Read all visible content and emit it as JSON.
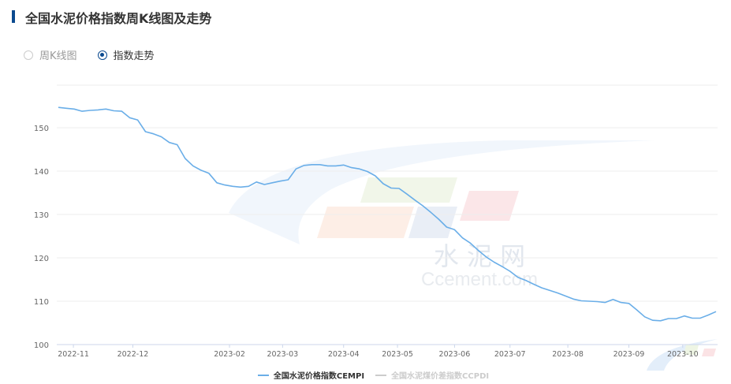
{
  "header": {
    "title": "全国水泥价格指数周K线图及走势"
  },
  "view_options": [
    {
      "label": "周K线图",
      "selected": false
    },
    {
      "label": "指数走势",
      "selected": true
    }
  ],
  "watermark": {
    "cn": "水 泥 网",
    "en": "Ccement.com",
    "corner_cn": "水泥网",
    "corner_en": "Ccement.com"
  },
  "colors": {
    "accent": "#0b4a8f",
    "series1": "#6aaee8",
    "series2_inactive": "#cccccc"
  },
  "chart_data": {
    "type": "line",
    "title": "",
    "xlabel": "",
    "ylabel": "",
    "ylim": [
      100,
      160
    ],
    "y_ticks": [
      100,
      110,
      120,
      130,
      140,
      150
    ],
    "grid": true,
    "legend_position": "bottom",
    "x_ticks": [
      {
        "label": "2022-11",
        "index": 1.9
      },
      {
        "label": "2022-12",
        "index": 9.4
      },
      {
        "label": "2023-02",
        "index": 21.6
      },
      {
        "label": "2023-03",
        "index": 28.3
      },
      {
        "label": "2023-04",
        "index": 36.0
      },
      {
        "label": "2023-05",
        "index": 42.8
      },
      {
        "label": "2023-06",
        "index": 50.0
      },
      {
        "label": "2023-07",
        "index": 57.0
      },
      {
        "label": "2023-08",
        "index": 64.3
      },
      {
        "label": "2023-09",
        "index": 72.0
      },
      {
        "label": "2023-10",
        "index": 78.8
      }
    ],
    "series": [
      {
        "name": "全国水泥价格指数CEMPI",
        "active": true,
        "values": [
          154.7,
          154.5,
          154.3,
          153.8,
          154.0,
          154.1,
          154.3,
          153.9,
          153.8,
          152.3,
          151.8,
          149.1,
          148.6,
          147.9,
          146.6,
          146.1,
          142.9,
          141.2,
          140.2,
          139.5,
          137.3,
          136.8,
          136.5,
          136.3,
          136.5,
          137.5,
          136.9,
          137.3,
          137.7,
          138.0,
          140.5,
          141.3,
          141.5,
          141.5,
          141.2,
          141.2,
          141.4,
          140.8,
          140.5,
          139.9,
          138.9,
          137.1,
          136.1,
          136.0,
          134.7,
          133.3,
          132.0,
          130.5,
          128.9,
          127.1,
          126.5,
          124.6,
          123.4,
          121.7,
          120.2,
          119.0,
          118.0,
          116.9,
          115.5,
          114.8,
          113.9,
          113.1,
          112.5,
          111.9,
          111.2,
          110.5,
          110.1,
          110.0,
          109.9,
          109.7,
          110.4,
          109.7,
          109.5,
          108.0,
          106.4,
          105.6,
          105.5,
          106.0,
          106.0,
          106.6,
          106.1,
          106.1,
          106.8,
          107.6
        ]
      },
      {
        "name": "全国水泥煤价差指数CCPDI",
        "active": false,
        "values": []
      }
    ]
  }
}
